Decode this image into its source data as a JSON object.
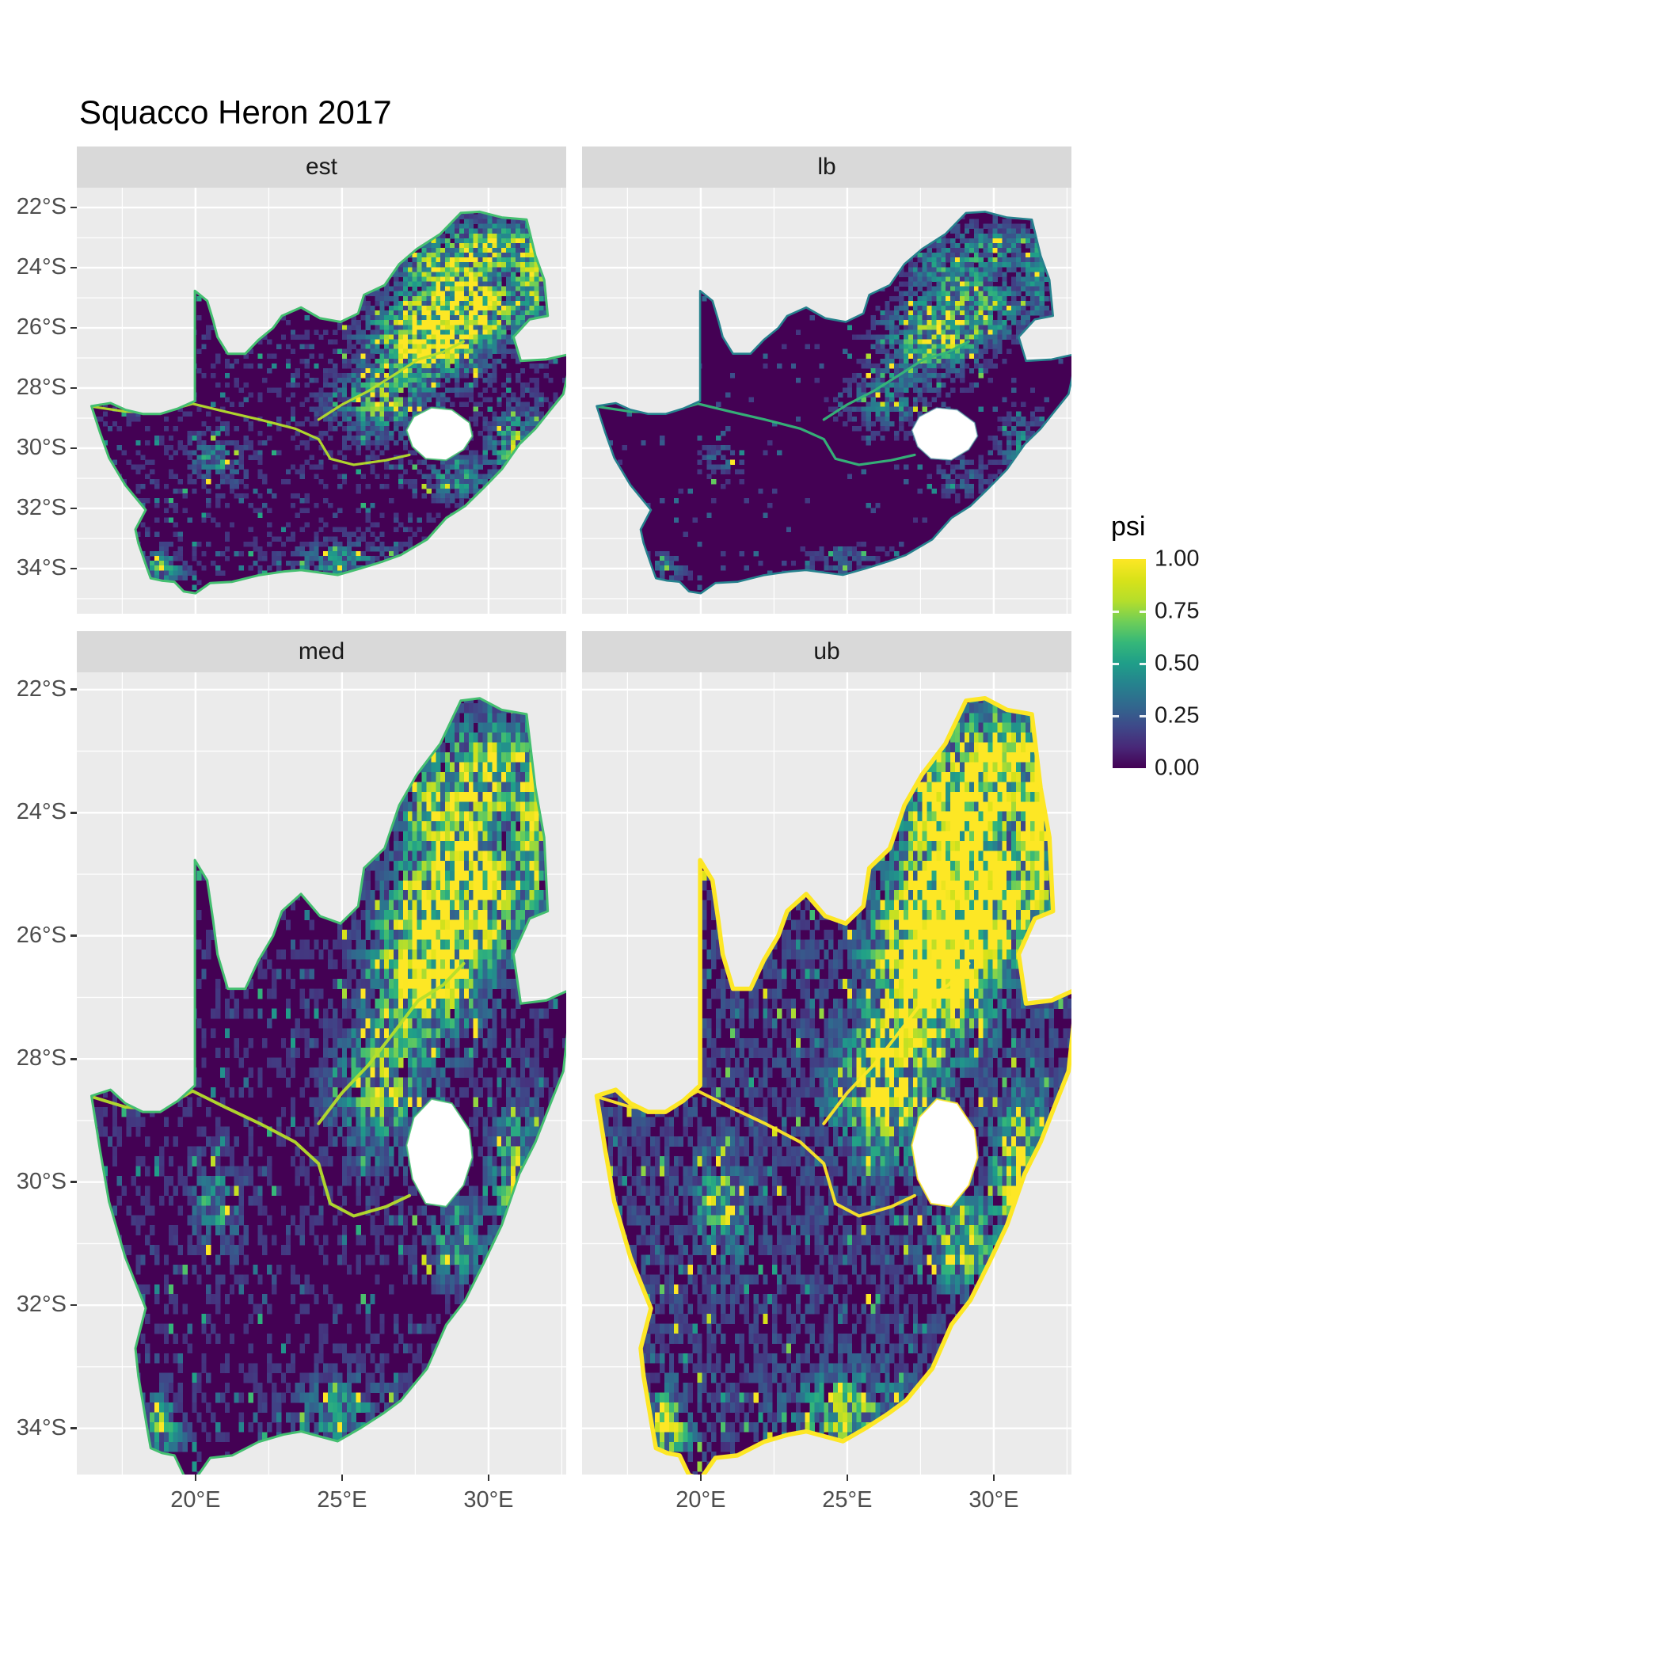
{
  "title": "Squacco Heron 2017",
  "facets": [
    {
      "id": "est",
      "label": "est"
    },
    {
      "id": "lb",
      "label": "lb"
    },
    {
      "id": "med",
      "label": "med"
    },
    {
      "id": "ub",
      "label": "ub"
    }
  ],
  "axes": {
    "y_tick_labels": [
      "22°S",
      "24°S",
      "26°S",
      "28°S",
      "30°S",
      "32°S",
      "34°S"
    ],
    "y_tick_values": [
      -22,
      -24,
      -26,
      -28,
      -30,
      -32,
      -34
    ],
    "x_tick_labels": [
      "20°E",
      "25°E",
      "30°E"
    ],
    "x_tick_values": [
      20,
      25,
      30
    ]
  },
  "legend": {
    "title": "psi",
    "tick_labels": [
      "1.00",
      "0.75",
      "0.50",
      "0.25",
      "0.00"
    ],
    "tick_values": [
      1.0,
      0.75,
      0.5,
      0.25,
      0.0
    ]
  },
  "colors": {
    "panel_bg": "#ebebeb",
    "strip_bg": "#d9d9d9",
    "grid": "#ffffff",
    "axis_text": "#4d4d4d",
    "strip_text": "#1a1a1a",
    "title_text": "#000000",
    "base_fill": "#440154",
    "hole_fill": "#ffffff"
  },
  "chart_data": {
    "type": "heatmap",
    "subtype": "faceted raster map, 2x2 grid",
    "title": "Squacco Heron 2017",
    "region": "South Africa (Lesotho shown as hole)",
    "variable": "psi",
    "value_range": [
      0,
      1
    ],
    "facets": [
      "est",
      "lb",
      "med",
      "ub"
    ],
    "facet_summary": {
      "est": "point estimate: hotspots in north-east Highveld/Gauteng, along Orange and Vaal rivers, coasts green-edged, mean psi ~0.15",
      "lb": "lower bound: darkest panel, same spatial pattern with lower psi, mean ~0.08",
      "med": "median: very similar to est, mean ~0.16",
      "ub": "upper bound: brightest panel, broad yellow-green north-east, yellow coastline, mean ~0.3"
    },
    "x_axis": {
      "ticks": [
        20,
        25,
        30
      ],
      "labels": [
        "20°E",
        "25°E",
        "30°E"
      ],
      "range": [
        15.95,
        32.65
      ]
    },
    "y_axis": {
      "ticks": [
        -22,
        -24,
        -26,
        -28,
        -30,
        -32,
        -34
      ],
      "labels": [
        "22°S",
        "24°S",
        "26°S",
        "28°S",
        "30°S",
        "32°S",
        "34°S"
      ],
      "range_top_row": [
        -35.5,
        -21.34
      ],
      "range_bottom_row": [
        -34.75,
        -21.72
      ]
    },
    "legend": {
      "title": "psi",
      "ticks": [
        0,
        0.25,
        0.5,
        0.75,
        1
      ],
      "labels": [
        "0.00",
        "0.25",
        "0.50",
        "0.75",
        "1.00"
      ],
      "position": "right"
    },
    "grid": "white major and minor gridlines on grey panel",
    "colorscale": {
      "name": "viridis",
      "stops": [
        [
          "0",
          "#440154"
        ],
        [
          "0.1",
          "#482878"
        ],
        [
          "0.2",
          "#3e4989"
        ],
        [
          "0.3",
          "#31688e"
        ],
        [
          "0.4",
          "#26828e"
        ],
        [
          "0.5",
          "#1f9e89"
        ],
        [
          "0.6",
          "#35b779"
        ],
        [
          "0.7",
          "#6ece58"
        ],
        [
          "0.8",
          "#b5de2b"
        ],
        [
          "0.9",
          "#d8e219"
        ],
        [
          "1",
          "#fde725"
        ]
      ]
    },
    "facet_render": [
      {
        "label": "est",
        "intensity": 1.0,
        "coast_color": "#44bf70",
        "coast_width": 3,
        "river_color": "#b5de2b"
      },
      {
        "label": "lb",
        "intensity": 0.55,
        "coast_color": "#26828e",
        "coast_width": 2.6,
        "river_color": "#35b779"
      },
      {
        "label": "med",
        "intensity": 1.08,
        "coast_color": "#44bf70",
        "coast_width": 3,
        "river_color": "#b5de2b"
      },
      {
        "label": "ub",
        "intensity": 1.7,
        "coast_color": "#fde725",
        "coast_width": 5.5,
        "river_color": "#fde725"
      }
    ],
    "pattern": {
      "baseline": 0.09,
      "cell_deg": 0.16,
      "hotspots": [
        {
          "lon": 27.9,
          "lat": -26.3,
          "sx": 1.6,
          "sy": 1.1,
          "w": 1.05
        },
        {
          "lon": 29.4,
          "lat": -25.2,
          "sx": 1.5,
          "sy": 1.0,
          "w": 0.7
        },
        {
          "lon": 30.0,
          "lat": -23.2,
          "sx": 1.4,
          "sy": 0.8,
          "w": 0.6
        },
        {
          "lon": 28.3,
          "lat": -24.0,
          "sx": 1.2,
          "sy": 0.9,
          "w": 0.5
        },
        {
          "lon": 26.2,
          "lat": -28.4,
          "sx": 1.4,
          "sy": 1.0,
          "w": 0.45
        },
        {
          "lon": 30.9,
          "lat": -29.8,
          "sx": 0.8,
          "sy": 1.0,
          "w": 0.5
        },
        {
          "lon": 31.4,
          "lat": -24.3,
          "sx": 0.45,
          "sy": 1.4,
          "w": 0.55
        },
        {
          "lon": 20.7,
          "lat": -30.3,
          "sx": 0.8,
          "sy": 0.7,
          "w": 0.3
        },
        {
          "lon": 18.7,
          "lat": -33.9,
          "sx": 0.7,
          "sy": 0.5,
          "w": 0.4
        },
        {
          "lon": 25.0,
          "lat": -33.7,
          "sx": 1.6,
          "sy": 0.55,
          "w": 0.3
        },
        {
          "lon": 28.8,
          "lat": -30.9,
          "sx": 0.9,
          "sy": 0.6,
          "w": 0.35
        }
      ]
    },
    "geography": {
      "outline": [
        [
          16.45,
          -28.6
        ],
        [
          17.1,
          -28.5
        ],
        [
          17.6,
          -28.72
        ],
        [
          18.2,
          -28.86
        ],
        [
          18.8,
          -28.86
        ],
        [
          19.4,
          -28.68
        ],
        [
          19.98,
          -28.43
        ],
        [
          19.98,
          -24.77
        ],
        [
          20.4,
          -25.1
        ],
        [
          20.6,
          -25.75
        ],
        [
          20.75,
          -26.3
        ],
        [
          21.1,
          -26.86
        ],
        [
          21.7,
          -26.86
        ],
        [
          22.15,
          -26.4
        ],
        [
          22.65,
          -26.0
        ],
        [
          22.95,
          -25.6
        ],
        [
          23.6,
          -25.32
        ],
        [
          24.25,
          -25.68
        ],
        [
          24.95,
          -25.8
        ],
        [
          25.55,
          -25.52
        ],
        [
          25.75,
          -24.9
        ],
        [
          26.45,
          -24.58
        ],
        [
          26.95,
          -23.88
        ],
        [
          27.55,
          -23.38
        ],
        [
          28.35,
          -22.88
        ],
        [
          29.05,
          -22.18
        ],
        [
          29.7,
          -22.14
        ],
        [
          30.45,
          -22.33
        ],
        [
          31.3,
          -22.4
        ],
        [
          31.6,
          -23.6
        ],
        [
          31.9,
          -24.4
        ],
        [
          32.02,
          -25.6
        ],
        [
          31.4,
          -25.72
        ],
        [
          30.85,
          -26.3
        ],
        [
          31.1,
          -27.1
        ],
        [
          31.97,
          -27.05
        ],
        [
          32.85,
          -26.86
        ],
        [
          32.55,
          -28.2
        ],
        [
          32.05,
          -28.8
        ],
        [
          31.6,
          -29.35
        ],
        [
          31.05,
          -29.87
        ],
        [
          30.45,
          -30.7
        ],
        [
          29.85,
          -31.3
        ],
        [
          29.2,
          -31.92
        ],
        [
          28.55,
          -32.32
        ],
        [
          27.9,
          -33.03
        ],
        [
          27.0,
          -33.55
        ],
        [
          26.4,
          -33.76
        ],
        [
          25.65,
          -33.99
        ],
        [
          24.85,
          -34.21
        ],
        [
          23.6,
          -34.05
        ],
        [
          23.0,
          -34.1
        ],
        [
          22.15,
          -34.22
        ],
        [
          21.25,
          -34.44
        ],
        [
          20.5,
          -34.48
        ],
        [
          20.0,
          -34.82
        ],
        [
          19.6,
          -34.76
        ],
        [
          19.28,
          -34.44
        ],
        [
          18.85,
          -34.4
        ],
        [
          18.47,
          -34.32
        ],
        [
          18.33,
          -33.94
        ],
        [
          18.05,
          -33.15
        ],
        [
          17.95,
          -32.7
        ],
        [
          18.3,
          -32.05
        ],
        [
          17.6,
          -31.22
        ],
        [
          17.05,
          -30.32
        ],
        [
          16.75,
          -29.5
        ]
      ],
      "lesotho_hole": [
        [
          27.2,
          -29.4
        ],
        [
          27.45,
          -28.95
        ],
        [
          28.05,
          -28.65
        ],
        [
          28.75,
          -28.72
        ],
        [
          29.35,
          -29.15
        ],
        [
          29.45,
          -29.6
        ],
        [
          29.15,
          -30.05
        ],
        [
          28.55,
          -30.4
        ],
        [
          27.85,
          -30.35
        ],
        [
          27.4,
          -29.95
        ]
      ],
      "rivers": {
        "orange": [
          [
            16.5,
            -28.62
          ],
          [
            17.6,
            -28.78
          ],
          [
            18.8,
            -28.82
          ],
          [
            19.9,
            -28.52
          ],
          [
            21.0,
            -28.78
          ],
          [
            22.2,
            -29.05
          ],
          [
            23.4,
            -29.35
          ],
          [
            24.2,
            -29.7
          ],
          [
            24.6,
            -30.35
          ],
          [
            25.4,
            -30.55
          ],
          [
            26.5,
            -30.4
          ],
          [
            27.3,
            -30.22
          ]
        ],
        "vaal": [
          [
            24.2,
            -29.05
          ],
          [
            25.0,
            -28.55
          ],
          [
            25.9,
            -28.1
          ],
          [
            26.8,
            -27.55
          ],
          [
            27.6,
            -27.05
          ],
          [
            28.45,
            -26.8
          ],
          [
            29.15,
            -26.45
          ]
        ]
      }
    }
  }
}
